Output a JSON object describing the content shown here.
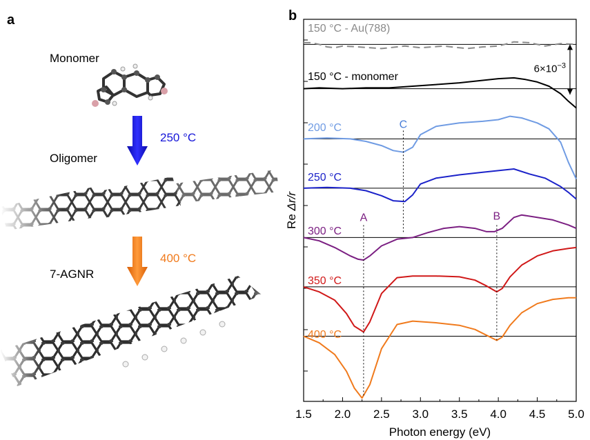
{
  "panel_a": {
    "label": "a",
    "stages": [
      {
        "name": "Monomer"
      },
      {
        "name": "Oligomer"
      },
      {
        "name": "7-AGNR"
      }
    ],
    "steps": [
      {
        "temperature": "250 °C",
        "color": "#1515d8"
      },
      {
        "temperature": "400 °C",
        "color": "#f07a1c"
      }
    ]
  },
  "panel_b": {
    "label": "b"
  },
  "chart_data": {
    "type": "line",
    "xlabel": "Photon energy (eV)",
    "ylabel_prefix": "Re ",
    "ylabel_symbol": "Δr/r",
    "xlim": [
      1.5,
      5.0
    ],
    "xticks": [
      "1.5",
      "2.0",
      "2.5",
      "3.0",
      "3.5",
      "4.0",
      "4.5",
      "5.0"
    ],
    "scale_bar": {
      "label_base": "6×10",
      "label_exp": "−3",
      "value": 0.006
    },
    "annotations": [
      {
        "label": "A",
        "x": 2.27,
        "color": "#7b1f82"
      },
      {
        "label": "B",
        "x": 3.98,
        "color": "#7b1f82"
      },
      {
        "label": "C",
        "x": 2.78,
        "color": "#4a7fd8"
      }
    ],
    "series": [
      {
        "name": "150 °C  - Au(788)",
        "color": "#8a8a8a",
        "dashed": true,
        "offset": 0.0315,
        "x": [
          1.5,
          1.6,
          1.7,
          1.8,
          1.9,
          2.0,
          2.2,
          2.5,
          2.8,
          3.0,
          3.3,
          3.6,
          3.8,
          4.0,
          4.2,
          4.4,
          4.6,
          4.8,
          5.0
        ],
        "y": [
          0.0002,
          0.0002,
          0.0,
          -0.0003,
          -0.0004,
          -0.0002,
          -0.0003,
          -0.0005,
          -0.0002,
          -0.0004,
          -0.0002,
          -0.0005,
          -0.0003,
          -0.0002,
          0.0003,
          0.0002,
          -0.0002,
          0.0001,
          0.0
        ]
      },
      {
        "name": "150 °C - monomer",
        "color": "#000000",
        "dashed": false,
        "offset": 0.0262,
        "x": [
          1.5,
          1.7,
          2.0,
          2.3,
          2.6,
          2.9,
          3.2,
          3.5,
          3.8,
          4.0,
          4.2,
          4.35,
          4.5,
          4.65,
          4.8,
          4.9,
          5.0
        ],
        "y": [
          0.0,
          0.0001,
          0.0,
          0.0001,
          0.0001,
          0.0003,
          0.0005,
          0.0007,
          0.001,
          0.0012,
          0.0013,
          0.0011,
          0.0008,
          0.0003,
          -0.0006,
          -0.0015,
          -0.0023
        ]
      },
      {
        "name": "200 °C",
        "color": "#6f9be3",
        "dashed": false,
        "offset": 0.0202,
        "x": [
          1.5,
          1.8,
          2.1,
          2.3,
          2.5,
          2.65,
          2.78,
          2.9,
          3.0,
          3.2,
          3.5,
          3.8,
          4.0,
          4.15,
          4.3,
          4.5,
          4.65,
          4.8,
          4.9,
          5.0
        ],
        "y": [
          0.0,
          0.0001,
          0.0,
          -0.0003,
          -0.0008,
          -0.0014,
          -0.0016,
          -0.001,
          0.0005,
          0.0015,
          0.0019,
          0.0021,
          0.0023,
          0.0027,
          0.0025,
          0.0019,
          0.0012,
          -0.0004,
          -0.0028,
          -0.0048
        ]
      },
      {
        "name": "250 °C",
        "color": "#1b22c9",
        "dashed": false,
        "offset": 0.0143,
        "x": [
          1.5,
          1.8,
          2.1,
          2.3,
          2.5,
          2.65,
          2.8,
          2.9,
          3.0,
          3.2,
          3.5,
          3.8,
          4.0,
          4.2,
          4.4,
          4.6,
          4.8,
          4.9,
          5.0
        ],
        "y": [
          0.0,
          0.0001,
          0.0,
          -0.0003,
          -0.0009,
          -0.0015,
          -0.0016,
          -0.0008,
          0.0005,
          0.0012,
          0.0016,
          0.0019,
          0.0021,
          0.0023,
          0.0017,
          0.0012,
          0.0002,
          -0.0005,
          -0.0013
        ]
      },
      {
        "name": "300 °C",
        "color": "#7b1f82",
        "dashed": false,
        "offset": 0.0084,
        "x": [
          1.5,
          1.7,
          1.9,
          2.1,
          2.2,
          2.27,
          2.35,
          2.5,
          2.7,
          2.9,
          3.1,
          3.3,
          3.5,
          3.7,
          3.85,
          3.95,
          4.05,
          4.2,
          4.3,
          4.5,
          4.7,
          4.9,
          5.0
        ],
        "y": [
          0.0,
          -0.0004,
          -0.0012,
          -0.0022,
          -0.0026,
          -0.0027,
          -0.0022,
          -0.001,
          -0.0002,
          0.0,
          0.0006,
          0.0011,
          0.0013,
          0.0011,
          0.0007,
          0.0007,
          0.0011,
          0.0024,
          0.0027,
          0.0024,
          0.0021,
          0.0015,
          0.0011
        ]
      },
      {
        "name": "350 °C",
        "color": "#d01818",
        "dashed": false,
        "offset": 0.0025,
        "x": [
          1.5,
          1.7,
          1.9,
          2.05,
          2.15,
          2.27,
          2.35,
          2.5,
          2.7,
          2.9,
          3.2,
          3.5,
          3.7,
          3.85,
          3.98,
          4.05,
          4.15,
          4.3,
          4.5,
          4.7,
          4.9,
          5.0
        ],
        "y": [
          0.0,
          -0.0006,
          -0.0016,
          -0.0032,
          -0.0047,
          -0.0054,
          -0.0042,
          -0.0008,
          0.0011,
          0.0013,
          0.0013,
          0.0012,
          0.0008,
          0.0001,
          -0.0006,
          -0.0002,
          0.0012,
          0.0026,
          0.0037,
          0.0043,
          0.0046,
          0.0047
        ]
      },
      {
        "name": "400 °C",
        "color": "#f07a1c",
        "dashed": false,
        "offset": -0.0034,
        "x": [
          1.5,
          1.7,
          1.9,
          2.05,
          2.15,
          2.25,
          2.35,
          2.5,
          2.7,
          2.9,
          3.2,
          3.5,
          3.7,
          3.85,
          3.98,
          4.05,
          4.15,
          4.3,
          4.5,
          4.7,
          4.9,
          5.0
        ],
        "y": [
          0.0,
          -0.0008,
          -0.0022,
          -0.0042,
          -0.0062,
          -0.0074,
          -0.0058,
          -0.0015,
          0.0014,
          0.0018,
          0.0016,
          0.0013,
          0.0008,
          0.0001,
          -0.0005,
          -0.0001,
          0.0013,
          0.0028,
          0.0039,
          0.0044,
          0.0046,
          0.0046
        ]
      }
    ]
  }
}
